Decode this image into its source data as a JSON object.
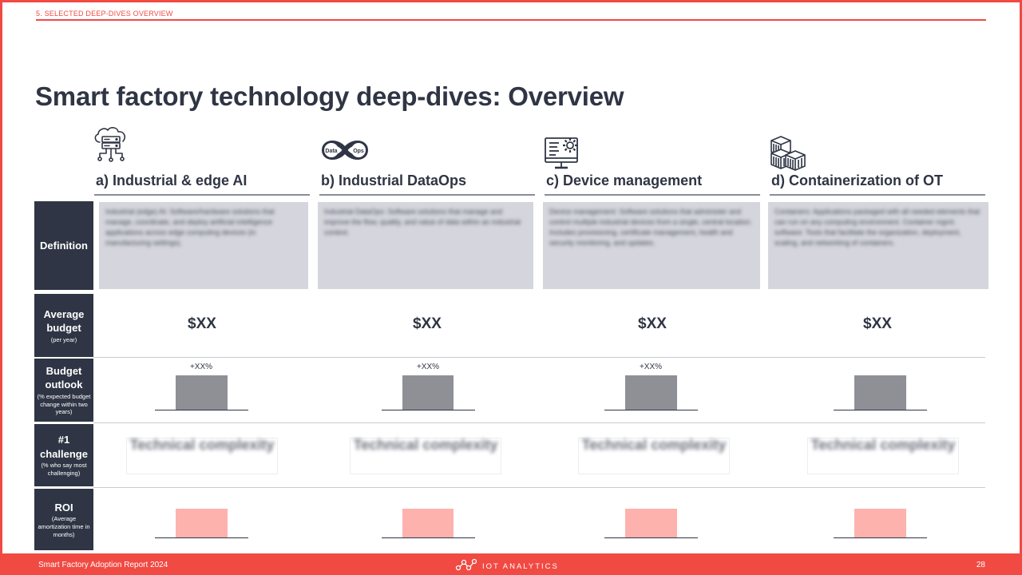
{
  "header": {
    "section_label": "5. SELECTED DEEP-DIVES OVERVIEW",
    "title": "Smart factory technology deep-dives: Overview"
  },
  "columns": [
    {
      "heading": "a) Industrial & edge AI",
      "icon": "cloud-server-icon",
      "definition": "Industrial (edge) AI: Software/hardware solutions that manage, coordinate, and deploy artificial intelligence applications across edge computing devices (in manufacturing settings).",
      "definition_term": "Industrial (edge) AI",
      "budget": "$XX",
      "outlook_label": "+XX%",
      "challenge": "Technical complexity"
    },
    {
      "heading": "b) Industrial DataOps",
      "icon": "dataops-loop-icon",
      "icon_text": [
        "Data",
        "Ops"
      ],
      "definition": "Industrial DataOps: Software solutions that manage and improve the flow, quality, and value of data within an industrial context.",
      "definition_term": "Industrial DataOps",
      "budget": "$XX",
      "outlook_label": "+XX%",
      "challenge": "Technical complexity"
    },
    {
      "heading": "c) Device management",
      "icon": "monitor-gear-icon",
      "definition": "Device management: Software solutions that administer and control multiple industrial devices from a single, central location. Includes provisioning, certificate management, health and security monitoring, and updates.",
      "definition_term": "Device management",
      "budget": "$XX",
      "outlook_label": "+XX%",
      "challenge": "Technical complexity"
    },
    {
      "heading": "d) Containerization of OT",
      "icon": "containers-icon",
      "definition": "Containers: Applications packaged with all needed elements that can run on any computing environment. Container mgmt. software: Tools that facilitate the organization, deployment, scaling, and networking of containers.",
      "definition_term": "Containers",
      "budget": "$XX",
      "outlook_label": "",
      "challenge": "Technical complexity"
    }
  ],
  "rows": {
    "definition": {
      "main": "Definition",
      "sub": ""
    },
    "budget": {
      "main": "Average budget",
      "sub": "(per year)"
    },
    "outlook": {
      "main": "Budget outlook",
      "sub": "(% expected budget change within two years)"
    },
    "challenge": {
      "main": "#1 challenge",
      "sub": "(% who say most challenging)"
    },
    "roi": {
      "main": "ROI",
      "sub": "(Average amortization time in months)"
    }
  },
  "footer": {
    "report": "Smart Factory Adoption Report 2024",
    "brand": "IOT ANALYTICS",
    "page": "28"
  },
  "colors": {
    "accent": "#f04a43",
    "navy": "#2f3544",
    "bar_grey": "#8f9096",
    "bar_pink": "#fdb2ad"
  }
}
